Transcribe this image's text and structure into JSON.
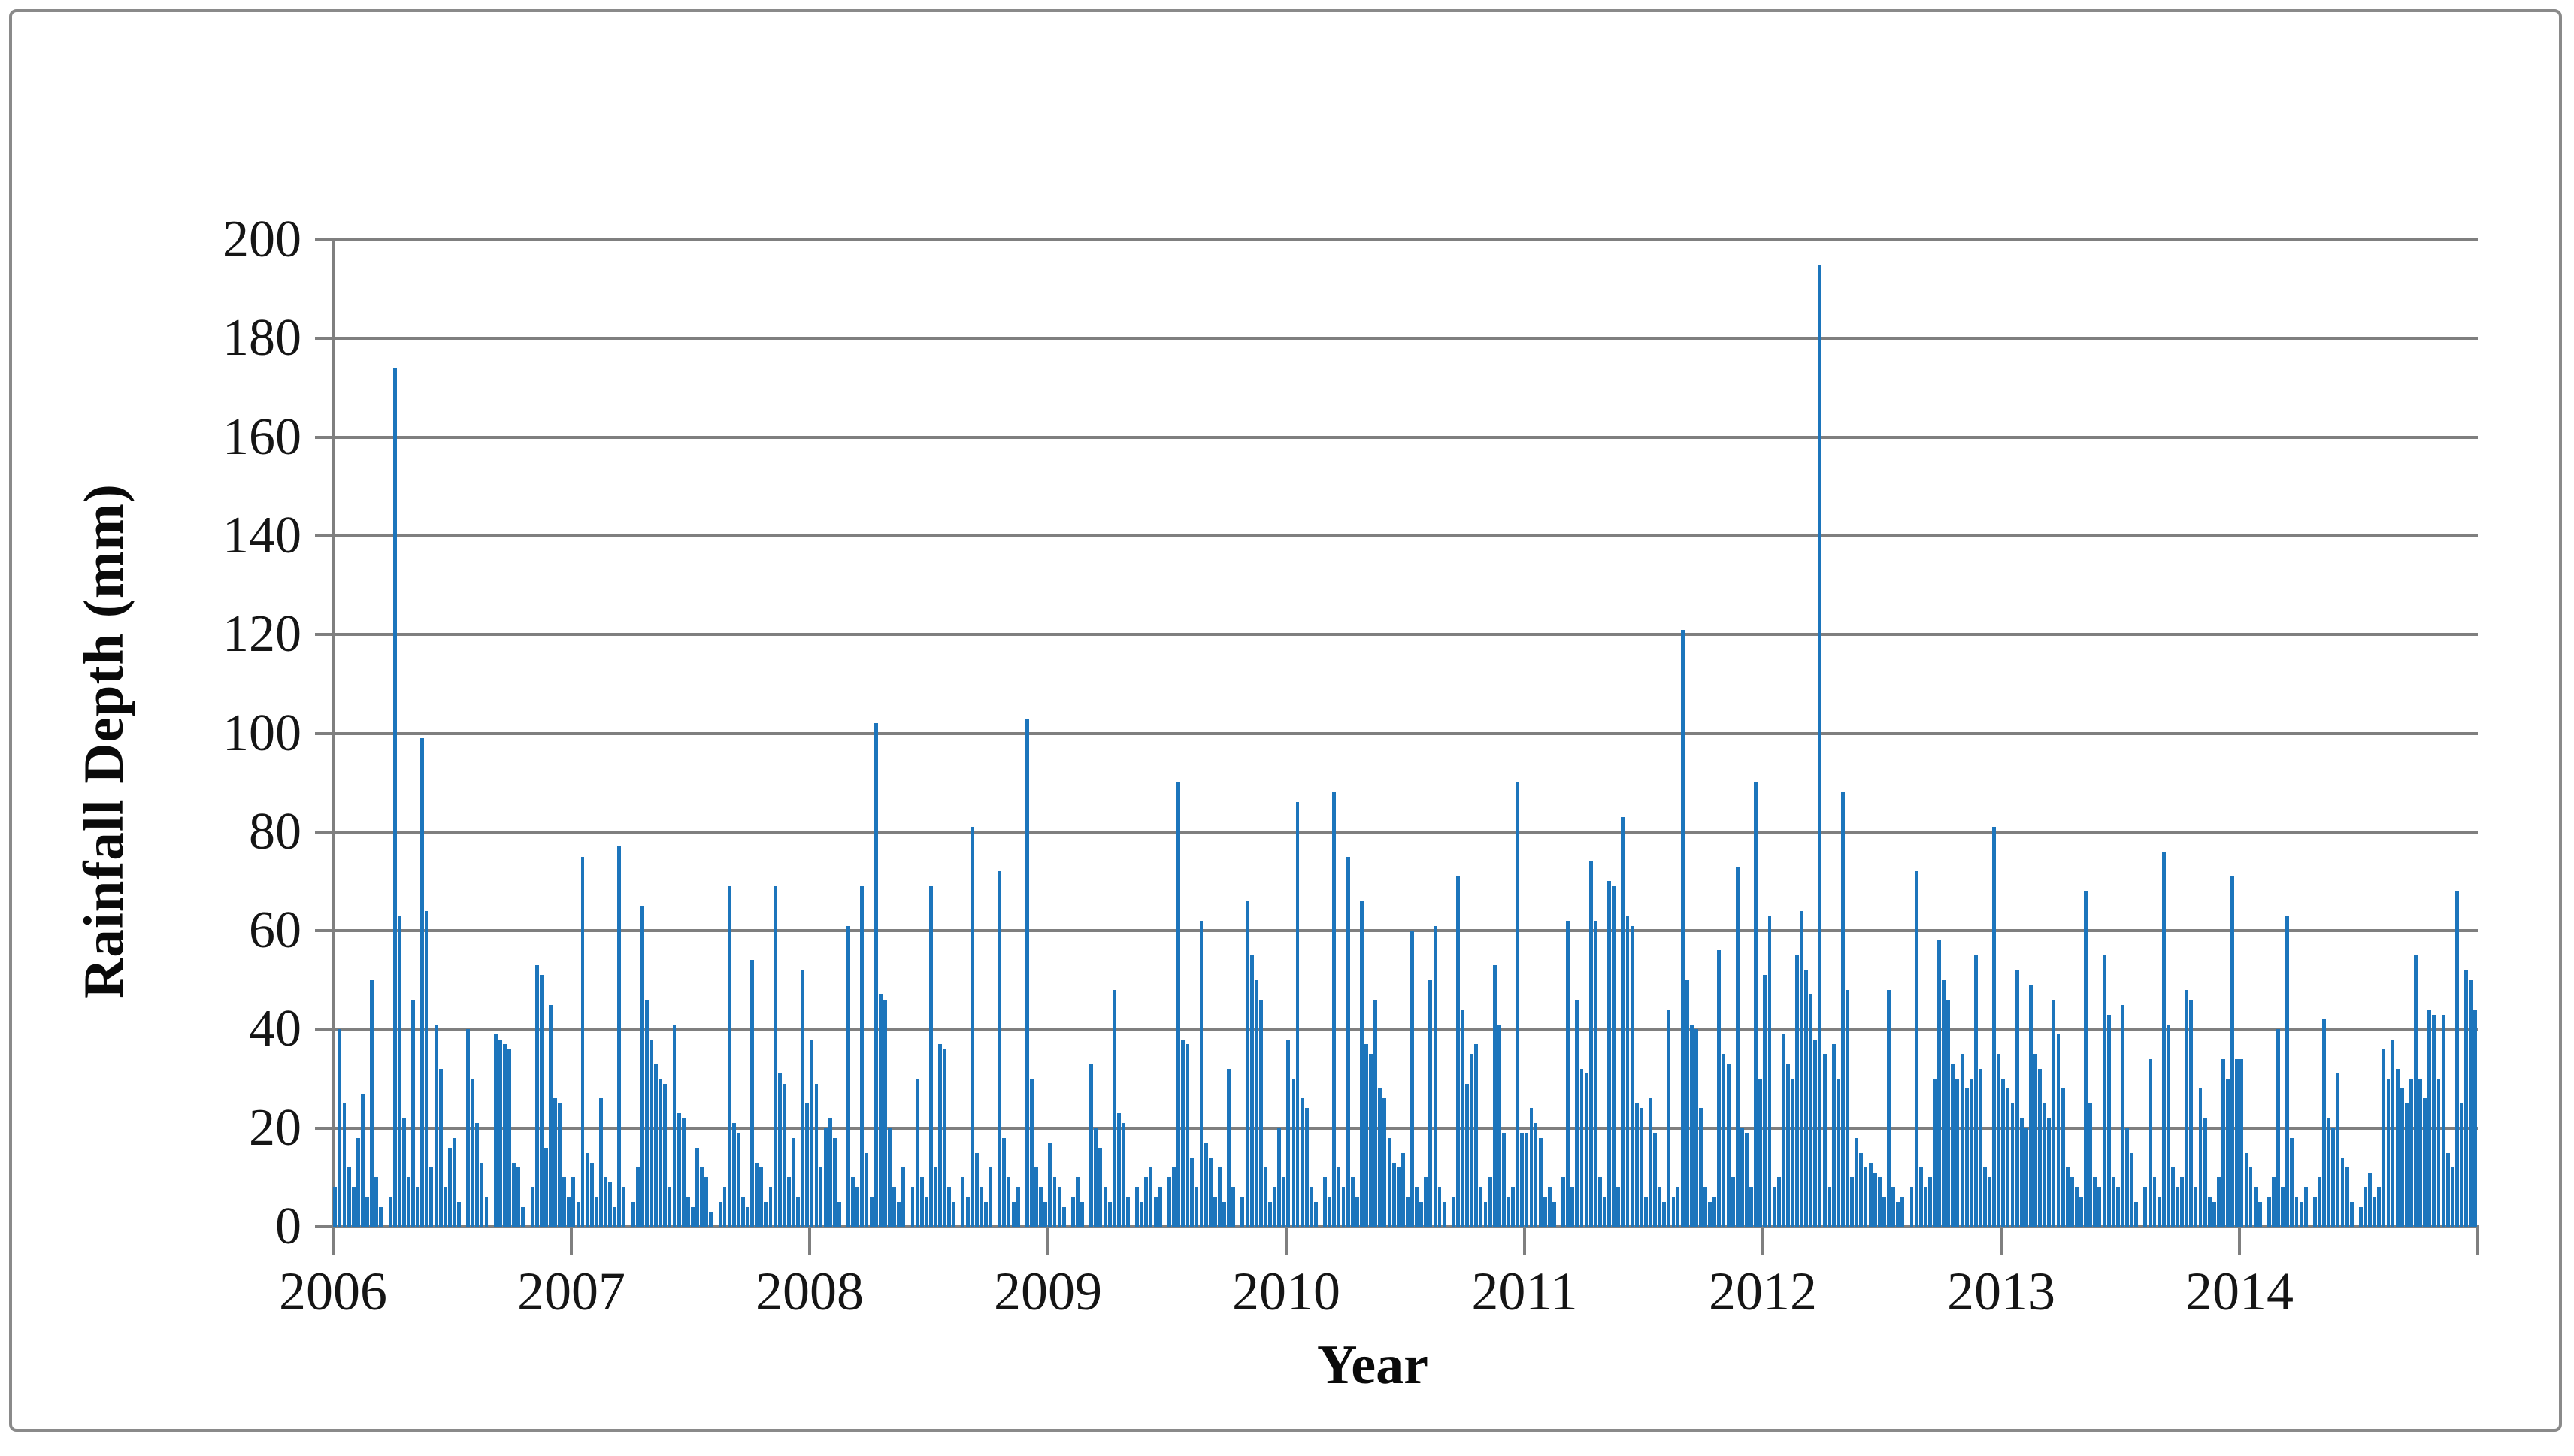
{
  "figure": {
    "type_note": "Daily rainfall depth bar chart, years 2006-2014",
    "background": "#ffffff",
    "border_color": "#8a8a8a"
  },
  "chart_data": {
    "type": "bar",
    "title": "",
    "xlabel": "Year",
    "ylabel": "Rainfall Depth (mm)",
    "unit": "mm",
    "ylim": [
      0,
      200
    ],
    "ytick_interval": 20,
    "y_ticks": [
      0,
      20,
      40,
      60,
      80,
      100,
      120,
      140,
      160,
      180,
      200
    ],
    "x_tick_years": [
      2006,
      2007,
      2008,
      2009,
      2010,
      2011,
      2012,
      2013,
      2014
    ],
    "grid": "horizontal",
    "legend": "none",
    "bar_color": "#1c75bc",
    "gridline_color": "#7f7f7f",
    "points_per_year": 52,
    "notable_peaks_mm": [
      {
        "t": 2006.26,
        "value": 174
      },
      {
        "t": 2006.39,
        "value": 99
      },
      {
        "t": 2007.2,
        "value": 77
      },
      {
        "t": 2007.05,
        "value": 75
      },
      {
        "t": 2008.27,
        "value": 102
      },
      {
        "t": 2008.67,
        "value": 81
      },
      {
        "t": 2008.91,
        "value": 103
      },
      {
        "t": 2009.55,
        "value": 90
      },
      {
        "t": 2010.06,
        "value": 86
      },
      {
        "t": 2010.2,
        "value": 88
      },
      {
        "t": 2010.97,
        "value": 90
      },
      {
        "t": 2011.4,
        "value": 83
      },
      {
        "t": 2011.65,
        "value": 121
      },
      {
        "t": 2011.96,
        "value": 90
      },
      {
        "t": 2012.23,
        "value": 195
      },
      {
        "t": 2012.33,
        "value": 88
      },
      {
        "t": 2012.96,
        "value": 81
      },
      {
        "t": 2013.67,
        "value": 76
      },
      {
        "t": 2013.96,
        "value": 71
      },
      {
        "t": 2014.91,
        "value": 68
      }
    ],
    "series": [
      {
        "name": "Rainfall Depth",
        "years": [
          {
            "year": 2006,
            "weekly_mm": [
              8,
              40,
              25,
              12,
              8,
              18,
              27,
              6,
              50,
              10,
              4,
              0,
              6,
              174,
              63,
              22,
              10,
              46,
              8,
              99,
              64,
              12,
              41,
              32,
              8,
              16,
              18,
              5,
              0,
              40,
              30,
              21,
              13,
              6,
              0,
              39,
              38,
              37,
              36,
              13,
              12,
              4,
              0,
              8,
              53,
              51,
              16,
              45,
              26,
              25,
              10,
              6
            ]
          },
          {
            "year": 2007,
            "weekly_mm": [
              10,
              5,
              75,
              15,
              13,
              6,
              26,
              10,
              9,
              4,
              77,
              8,
              0,
              5,
              12,
              65,
              46,
              38,
              33,
              30,
              29,
              8,
              41,
              23,
              22,
              6,
              4,
              16,
              12,
              10,
              3,
              0,
              5,
              8,
              69,
              21,
              19,
              6,
              4,
              54,
              13,
              12,
              5,
              8,
              69,
              31,
              29,
              10,
              18,
              6,
              52,
              25
            ]
          },
          {
            "year": 2008,
            "weekly_mm": [
              38,
              29,
              12,
              20,
              22,
              18,
              5,
              0,
              61,
              10,
              8,
              69,
              15,
              6,
              102,
              47,
              46,
              20,
              8,
              5,
              12,
              0,
              8,
              30,
              10,
              6,
              69,
              12,
              37,
              36,
              8,
              5,
              0,
              10,
              6,
              81,
              15,
              8,
              5,
              12,
              0,
              72,
              18,
              10,
              5,
              8,
              0,
              103,
              30,
              12,
              8,
              5
            ]
          },
          {
            "year": 2009,
            "weekly_mm": [
              17,
              10,
              8,
              4,
              0,
              6,
              10,
              5,
              0,
              33,
              20,
              16,
              8,
              5,
              48,
              23,
              21,
              6,
              0,
              8,
              5,
              10,
              12,
              6,
              8,
              0,
              10,
              12,
              90,
              38,
              37,
              14,
              8,
              62,
              17,
              14,
              6,
              12,
              5,
              32,
              8,
              0,
              6,
              66,
              55,
              50,
              46,
              12,
              5,
              8,
              20,
              10
            ]
          },
          {
            "year": 2010,
            "weekly_mm": [
              38,
              30,
              86,
              26,
              24,
              8,
              5,
              0,
              10,
              6,
              88,
              12,
              8,
              75,
              10,
              6,
              66,
              37,
              35,
              46,
              28,
              26,
              18,
              13,
              12,
              15,
              6,
              60,
              8,
              5,
              10,
              50,
              61,
              8,
              5,
              0,
              6,
              71,
              44,
              29,
              35,
              37,
              8,
              5,
              10,
              53,
              41,
              19,
              6,
              8,
              90,
              19
            ]
          },
          {
            "year": 2011,
            "weekly_mm": [
              19,
              24,
              21,
              18,
              6,
              8,
              5,
              0,
              10,
              62,
              8,
              46,
              32,
              31,
              74,
              62,
              10,
              6,
              70,
              69,
              8,
              83,
              63,
              61,
              25,
              24,
              6,
              26,
              19,
              8,
              5,
              44,
              6,
              8,
              121,
              50,
              41,
              40,
              24,
              8,
              5,
              6,
              56,
              35,
              33,
              10,
              73,
              20,
              19,
              8,
              90,
              30
            ]
          },
          {
            "year": 2012,
            "weekly_mm": [
              51,
              63,
              8,
              10,
              39,
              33,
              30,
              55,
              64,
              52,
              47,
              38,
              195,
              35,
              8,
              37,
              30,
              88,
              48,
              10,
              18,
              15,
              12,
              13,
              11,
              10,
              6,
              48,
              8,
              5,
              6,
              0,
              8,
              72,
              12,
              8,
              10,
              30,
              58,
              50,
              46,
              33,
              30,
              35,
              28,
              30,
              55,
              32,
              12,
              10,
              81,
              35
            ]
          },
          {
            "year": 2013,
            "weekly_mm": [
              30,
              28,
              25,
              52,
              22,
              20,
              49,
              35,
              32,
              25,
              22,
              46,
              39,
              28,
              12,
              10,
              8,
              6,
              68,
              25,
              10,
              8,
              55,
              43,
              10,
              8,
              45,
              20,
              15,
              5,
              0,
              8,
              34,
              10,
              6,
              76,
              41,
              12,
              8,
              10,
              48,
              46,
              8,
              28,
              22,
              6,
              5,
              10,
              34,
              30,
              71,
              34
            ]
          },
          {
            "year": 2014,
            "weekly_mm": [
              34,
              15,
              12,
              8,
              5,
              0,
              6,
              10,
              40,
              8,
              63,
              18,
              6,
              5,
              8,
              0,
              6,
              10,
              42,
              22,
              20,
              31,
              14,
              12,
              5,
              0,
              4,
              8,
              11,
              6,
              8,
              36,
              30,
              38,
              32,
              28,
              25,
              30,
              55,
              30,
              26,
              44,
              43,
              30,
              43,
              15,
              12,
              68,
              25,
              52,
              50,
              44
            ]
          }
        ]
      }
    ]
  }
}
